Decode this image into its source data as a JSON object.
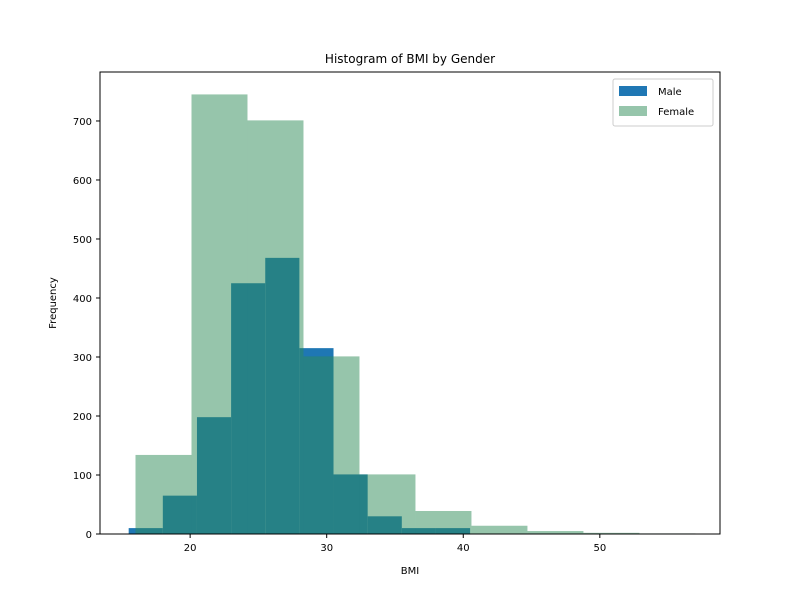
{
  "chart_data": {
    "type": "bar",
    "title": "Histogram of BMI by Gender",
    "xlabel": "BMI",
    "ylabel": "Frequency",
    "xlim": [
      13.4,
      58.8
    ],
    "ylim": [
      0,
      783
    ],
    "xticks": [
      20,
      30,
      40,
      50
    ],
    "yticks": [
      0,
      100,
      200,
      300,
      400,
      500,
      600,
      700
    ],
    "legend_position": "top-right",
    "series": [
      {
        "name": "Male",
        "color": "#1f77b4",
        "opacity": 1.0,
        "bin_edges": [
          15.5,
          18.0,
          20.5,
          23.0,
          25.5,
          28.0,
          30.5,
          33.0,
          35.5,
          38.0,
          40.5
        ],
        "values": [
          10,
          65,
          198,
          425,
          468,
          315,
          101,
          30,
          10,
          10
        ]
      },
      {
        "name": "Female",
        "color": "#2e8b57",
        "opacity": 0.5,
        "bin_edges": [
          16.0,
          20.1,
          24.2,
          28.3,
          32.4,
          36.5,
          40.6,
          44.7,
          48.8,
          52.9,
          57.0
        ],
        "values": [
          134,
          745,
          701,
          301,
          101,
          39,
          14,
          5,
          2,
          1
        ]
      }
    ]
  }
}
